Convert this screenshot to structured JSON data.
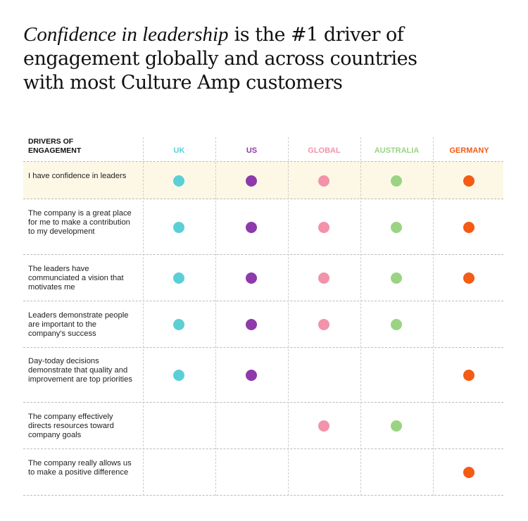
{
  "title": {
    "emphasis": "Confidence in leadership",
    "rest": " is the #1 driver of engagement globally and across countries with most Culture Amp customers"
  },
  "chart_data": {
    "type": "table",
    "row_header": "DRIVERS OF ENGAGEMENT",
    "columns": [
      "UK",
      "US",
      "GLOBAL",
      "AUSTRALIA",
      "GERMANY"
    ],
    "column_colors": [
      "#5ccfd6",
      "#8e3aab",
      "#f293ab",
      "#9ad482",
      "#f45b13"
    ],
    "highlight_row": 0,
    "highlight_color": "#fdf8e6",
    "rows": [
      {
        "label": "I have confidence in leaders",
        "marks": [
          true,
          true,
          true,
          true,
          true
        ]
      },
      {
        "label": "The company is a great place for me to make a contribution to my development",
        "marks": [
          true,
          true,
          true,
          true,
          true
        ]
      },
      {
        "label": "The leaders have communciated a vision that motivates me",
        "marks": [
          true,
          true,
          true,
          true,
          true
        ]
      },
      {
        "label": "Leaders demonstrate people are important to the company's success",
        "marks": [
          true,
          true,
          true,
          true,
          false
        ]
      },
      {
        "label": "Day-today decisions demonstrate that quality and improvement are top priorities",
        "marks": [
          true,
          true,
          false,
          false,
          true
        ]
      },
      {
        "label": "The company effectively directs resources toward company goals",
        "marks": [
          false,
          false,
          true,
          true,
          false
        ]
      },
      {
        "label": "The company really allows us to make a positive difference",
        "marks": [
          false,
          false,
          false,
          false,
          true
        ]
      }
    ]
  }
}
